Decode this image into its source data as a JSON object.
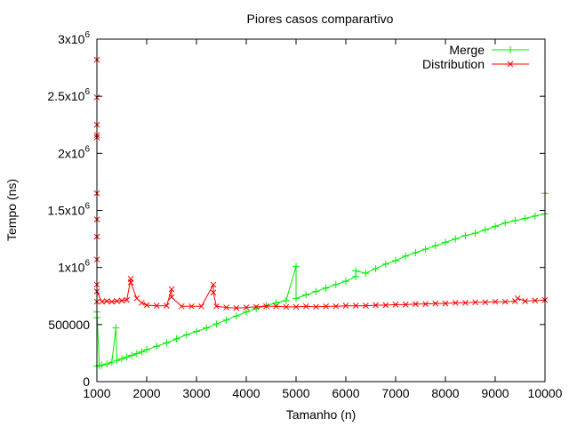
{
  "chart_data": {
    "type": "line",
    "title": "Piores casos comparartivo",
    "xlabel": "Tamanho (n)",
    "ylabel": "Tempo (ns)",
    "xlim": [
      1000,
      10000
    ],
    "ylim": [
      0,
      3000000
    ],
    "x_ticks": [
      1000,
      2000,
      3000,
      4000,
      5000,
      6000,
      7000,
      8000,
      9000,
      10000
    ],
    "y_ticks": [
      {
        "value": 0,
        "label": "0",
        "exp": ""
      },
      {
        "value": 500000,
        "label": "500000",
        "exp": ""
      },
      {
        "value": 1000000,
        "label": "1x10",
        "exp": "6"
      },
      {
        "value": 1500000,
        "label": "1.5x10",
        "exp": "6"
      },
      {
        "value": 2000000,
        "label": "2x10",
        "exp": "6"
      },
      {
        "value": 2500000,
        "label": "2.5x10",
        "exp": "6"
      },
      {
        "value": 3000000,
        "label": "3x10",
        "exp": "6"
      }
    ],
    "grid": false,
    "legend_position": "top-right",
    "series": [
      {
        "name": "Merge",
        "color": "#00ee00",
        "marker": "plus",
        "points": [
          [
            1000,
            135000
          ],
          [
            1000,
            560000
          ],
          [
            1000,
            610000
          ],
          [
            1050,
            140000
          ],
          [
            1100,
            145000
          ],
          [
            1200,
            155000
          ],
          [
            1300,
            170000
          ],
          [
            1380,
            470000
          ],
          [
            1400,
            185000
          ],
          [
            1500,
            200000
          ],
          [
            1600,
            215000
          ],
          [
            1700,
            230000
          ],
          [
            1800,
            245000
          ],
          [
            1900,
            260000
          ],
          [
            2000,
            280000
          ],
          [
            2200,
            310000
          ],
          [
            2400,
            340000
          ],
          [
            2600,
            375000
          ],
          [
            2800,
            410000
          ],
          [
            3000,
            440000
          ],
          [
            3200,
            470000
          ],
          [
            3400,
            505000
          ],
          [
            3600,
            540000
          ],
          [
            3800,
            575000
          ],
          [
            4000,
            610000
          ],
          [
            4200,
            640000
          ],
          [
            4400,
            665000
          ],
          [
            4600,
            690000
          ],
          [
            4800,
            710000
          ],
          [
            5000,
            1010000
          ],
          [
            5000,
            730000
          ],
          [
            5200,
            760000
          ],
          [
            5400,
            790000
          ],
          [
            5600,
            820000
          ],
          [
            5800,
            850000
          ],
          [
            6000,
            880000
          ],
          [
            6200,
            920000
          ],
          [
            6200,
            970000
          ],
          [
            6400,
            950000
          ],
          [
            6600,
            990000
          ],
          [
            6800,
            1030000
          ],
          [
            7000,
            1060000
          ],
          [
            7200,
            1100000
          ],
          [
            7400,
            1130000
          ],
          [
            7600,
            1160000
          ],
          [
            7800,
            1190000
          ],
          [
            8000,
            1220000
          ],
          [
            8200,
            1250000
          ],
          [
            8400,
            1280000
          ],
          [
            8600,
            1300000
          ],
          [
            8800,
            1330000
          ],
          [
            9000,
            1360000
          ],
          [
            9200,
            1390000
          ],
          [
            9400,
            1410000
          ],
          [
            9600,
            1430000
          ],
          [
            9800,
            1450000
          ],
          [
            10000,
            1470000
          ],
          [
            10000,
            1650000
          ]
        ]
      },
      {
        "name": "Distribution",
        "color": "#ff0000",
        "marker": "cross",
        "points": [
          [
            1000,
            700000
          ],
          [
            1000,
            2820000
          ],
          [
            1000,
            2490000
          ],
          [
            1000,
            2250000
          ],
          [
            1000,
            2160000
          ],
          [
            1000,
            2140000
          ],
          [
            1000,
            1650000
          ],
          [
            1000,
            1420000
          ],
          [
            1000,
            1270000
          ],
          [
            1000,
            1070000
          ],
          [
            1000,
            850000
          ],
          [
            1000,
            790000
          ],
          [
            1100,
            700000
          ],
          [
            1200,
            705000
          ],
          [
            1300,
            700000
          ],
          [
            1400,
            705000
          ],
          [
            1500,
            710000
          ],
          [
            1600,
            715000
          ],
          [
            1680,
            900000
          ],
          [
            1680,
            870000
          ],
          [
            1800,
            730000
          ],
          [
            1900,
            690000
          ],
          [
            2000,
            670000
          ],
          [
            2200,
            665000
          ],
          [
            2400,
            665000
          ],
          [
            2500,
            810000
          ],
          [
            2500,
            740000
          ],
          [
            2700,
            660000
          ],
          [
            2900,
            660000
          ],
          [
            3100,
            660000
          ],
          [
            3340,
            850000
          ],
          [
            3340,
            780000
          ],
          [
            3400,
            660000
          ],
          [
            3600,
            650000
          ],
          [
            3800,
            645000
          ],
          [
            4000,
            650000
          ],
          [
            4200,
            655000
          ],
          [
            4400,
            660000
          ],
          [
            4600,
            660000
          ],
          [
            4800,
            655000
          ],
          [
            5000,
            655000
          ],
          [
            5200,
            660000
          ],
          [
            5400,
            655000
          ],
          [
            5600,
            660000
          ],
          [
            5800,
            660000
          ],
          [
            6000,
            665000
          ],
          [
            6200,
            665000
          ],
          [
            6400,
            665000
          ],
          [
            6600,
            670000
          ],
          [
            6800,
            670000
          ],
          [
            7000,
            675000
          ],
          [
            7200,
            675000
          ],
          [
            7400,
            680000
          ],
          [
            7600,
            680000
          ],
          [
            7800,
            685000
          ],
          [
            8000,
            685000
          ],
          [
            8200,
            690000
          ],
          [
            8400,
            690000
          ],
          [
            8600,
            695000
          ],
          [
            8800,
            695000
          ],
          [
            9000,
            700000
          ],
          [
            9200,
            700000
          ],
          [
            9400,
            705000
          ],
          [
            9450,
            730000
          ],
          [
            9600,
            705000
          ],
          [
            9800,
            710000
          ],
          [
            10000,
            715000
          ]
        ]
      }
    ]
  }
}
